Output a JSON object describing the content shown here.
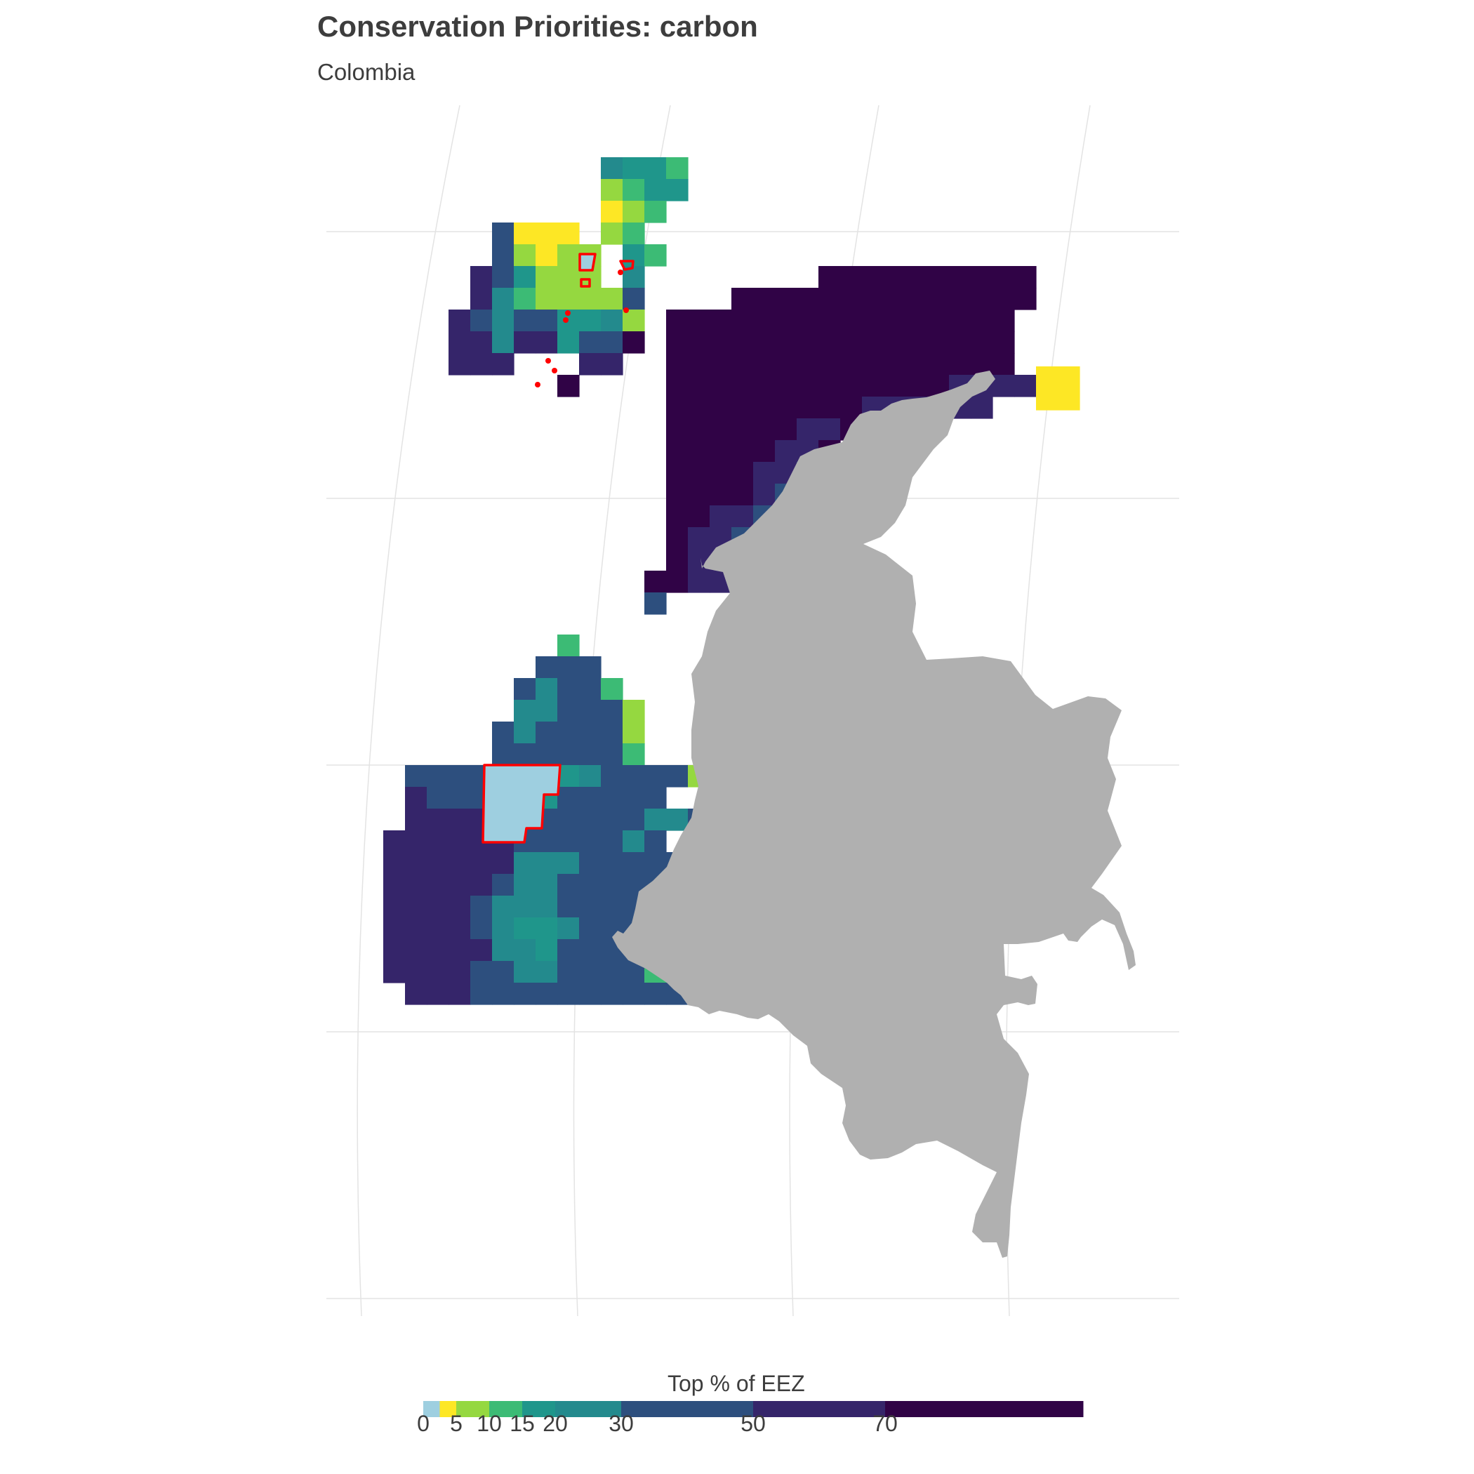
{
  "title": "Conservation Priorities: carbon",
  "subtitle": "Colombia",
  "legend": {
    "title": "Top % of EEZ",
    "bins": [
      {
        "from": 0,
        "to": 2.5,
        "color": "#9ECFE0"
      },
      {
        "from": 2.5,
        "to": 5,
        "color": "#FDE725"
      },
      {
        "from": 5,
        "to": 10,
        "color": "#95D840"
      },
      {
        "from": 10,
        "to": 15,
        "color": "#3CBB75"
      },
      {
        "from": 15,
        "to": 20,
        "color": "#1F968B"
      },
      {
        "from": 20,
        "to": 30,
        "color": "#238A8D"
      },
      {
        "from": 30,
        "to": 50,
        "color": "#2D4F7E"
      },
      {
        "from": 50,
        "to": 70,
        "color": "#35256A"
      },
      {
        "from": 70,
        "to": 100,
        "color": "#300346"
      }
    ],
    "tick_labels": [
      "0",
      "5",
      "10",
      "15",
      "20",
      "30",
      "50",
      "70"
    ],
    "tick_values": [
      0,
      5,
      10,
      15,
      20,
      30,
      50,
      70
    ]
  },
  "colors": {
    "land": "#B0B0B0",
    "protected_area_outline": "#FF0000",
    "graticule": "#E3E3E3"
  }
}
